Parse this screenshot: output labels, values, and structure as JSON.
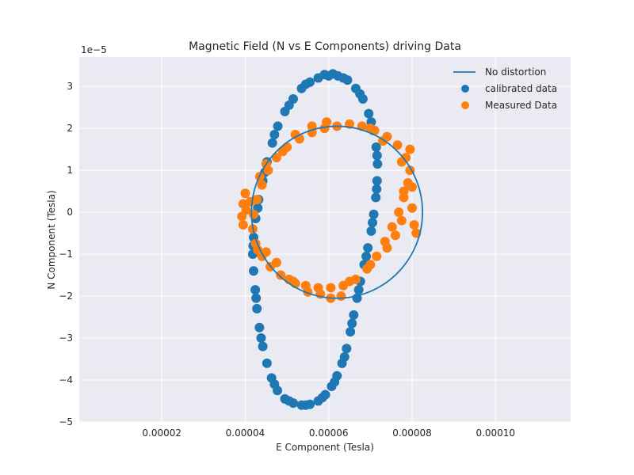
{
  "chart_data": {
    "type": "scatter",
    "title": "Magnetic Field (N vs E Components) driving Data",
    "xlabel": "E Component (Tesla)",
    "ylabel": "N Component (Tesla)",
    "y_offset_label": "1e−5",
    "xlim": [
      2e-07,
      1.18e-05
    ],
    "ylim": [
      -5,
      3.7
    ],
    "y_unit_multiplier": 1e-05,
    "xticks": [
      {
        "value": 2e-05,
        "label": "0.00002"
      },
      {
        "value": 4e-05,
        "label": "0.00004"
      },
      {
        "value": 6e-05,
        "label": "0.00006"
      },
      {
        "value": 8e-05,
        "label": "0.00008"
      },
      {
        "value": 0.0001,
        "label": "0.00010"
      }
    ],
    "yticks": [
      {
        "value": 3,
        "label": "3"
      },
      {
        "value": 2,
        "label": "2"
      },
      {
        "value": 1,
        "label": "1"
      },
      {
        "value": 0,
        "label": "0"
      },
      {
        "value": -1,
        "label": "−1"
      },
      {
        "value": -2,
        "label": "−2"
      },
      {
        "value": -3,
        "label": "−3"
      },
      {
        "value": -4,
        "label": "−4"
      },
      {
        "value": -5,
        "label": "−5"
      }
    ],
    "grid": true,
    "legend_placement": "top-right",
    "background": "#eaeaf2",
    "series": [
      {
        "name": "No distortion",
        "kind": "line",
        "color": "#1f77b4",
        "center": [
          6.2e-05,
          0.0
        ],
        "radius_x": 2.05e-05,
        "radius_y": 2.05
      },
      {
        "name": "calibrated data",
        "kind": "scatter",
        "color": "#1f77b4",
        "points": [
          [
            6e-05,
            3.25
          ],
          [
            5.75e-05,
            3.2
          ],
          [
            5.55e-05,
            3.1
          ],
          [
            5.35e-05,
            2.95
          ],
          [
            5.15e-05,
            2.7
          ],
          [
            4.95e-05,
            2.4
          ],
          [
            4.78e-05,
            2.05
          ],
          [
            4.65e-05,
            1.65
          ],
          [
            4.52e-05,
            1.2
          ],
          [
            4.42e-05,
            0.75
          ],
          [
            4.32e-05,
            0.3
          ],
          [
            4.25e-05,
            -0.15
          ],
          [
            4.2e-05,
            -0.6
          ],
          [
            4.18e-05,
            -1.0
          ],
          [
            4.2e-05,
            -1.4
          ],
          [
            4.24e-05,
            -1.85
          ],
          [
            4.28e-05,
            -2.3
          ],
          [
            4.34e-05,
            -2.75
          ],
          [
            4.42e-05,
            -3.2
          ],
          [
            4.52e-05,
            -3.6
          ],
          [
            4.63e-05,
            -3.95
          ],
          [
            4.77e-05,
            -4.25
          ],
          [
            4.95e-05,
            -4.45
          ],
          [
            5.15e-05,
            -4.55
          ],
          [
            5.35e-05,
            -4.6
          ],
          [
            5.55e-05,
            -4.58
          ],
          [
            5.75e-05,
            -4.5
          ],
          [
            5.92e-05,
            -4.35
          ],
          [
            6.07e-05,
            -4.15
          ],
          [
            6.2e-05,
            -3.9
          ],
          [
            6.32e-05,
            -3.6
          ],
          [
            6.43e-05,
            -3.25
          ],
          [
            6.52e-05,
            -2.85
          ],
          [
            6.6e-05,
            -2.45
          ],
          [
            6.68e-05,
            -2.05
          ],
          [
            6.76e-05,
            -1.65
          ],
          [
            6.85e-05,
            -1.25
          ],
          [
            6.94e-05,
            -0.85
          ],
          [
            7.02e-05,
            -0.45
          ],
          [
            7.08e-05,
            -0.05
          ],
          [
            7.13e-05,
            0.35
          ],
          [
            7.16e-05,
            0.75
          ],
          [
            7.17e-05,
            1.15
          ],
          [
            7.14e-05,
            1.55
          ],
          [
            7.07e-05,
            1.95
          ],
          [
            6.96e-05,
            2.35
          ],
          [
            6.82e-05,
            2.7
          ],
          [
            6.65e-05,
            2.95
          ],
          [
            6.45e-05,
            3.15
          ],
          [
            6.22e-05,
            3.25
          ],
          [
            6.1e-05,
            3.3
          ],
          [
            5.9e-05,
            3.28
          ],
          [
            5.45e-05,
            3.05
          ],
          [
            5.05e-05,
            2.55
          ],
          [
            4.7e-05,
            1.85
          ],
          [
            4.47e-05,
            0.95
          ],
          [
            4.3e-05,
            0.1
          ],
          [
            4.19e-05,
            -0.8
          ],
          [
            4.26e-05,
            -2.05
          ],
          [
            4.38e-05,
            -3.0
          ],
          [
            4.7e-05,
            -4.1
          ],
          [
            5.05e-05,
            -4.5
          ],
          [
            5.45e-05,
            -4.6
          ],
          [
            5.85e-05,
            -4.42
          ],
          [
            6.14e-05,
            -4.05
          ],
          [
            6.38e-05,
            -3.45
          ],
          [
            6.56e-05,
            -2.65
          ],
          [
            6.72e-05,
            -1.85
          ],
          [
            6.9e-05,
            -1.05
          ],
          [
            7.05e-05,
            -0.25
          ],
          [
            7.15e-05,
            0.55
          ],
          [
            7.16e-05,
            1.35
          ],
          [
            7.02e-05,
            2.15
          ],
          [
            6.75e-05,
            2.82
          ],
          [
            6.35e-05,
            3.2
          ]
        ]
      },
      {
        "name": "Measured Data",
        "kind": "scatter",
        "color": "#ff7f0e",
        "points": [
          [
            6.2e-05,
            2.05
          ],
          [
            5.9e-05,
            2.0
          ],
          [
            5.6e-05,
            1.9
          ],
          [
            5.3e-05,
            1.75
          ],
          [
            5e-05,
            1.55
          ],
          [
            4.75e-05,
            1.3
          ],
          [
            4.55e-05,
            1.0
          ],
          [
            4.4e-05,
            0.65
          ],
          [
            4.28e-05,
            0.3
          ],
          [
            4.2e-05,
            -0.05
          ],
          [
            4.18e-05,
            -0.4
          ],
          [
            4.25e-05,
            -0.75
          ],
          [
            4.4e-05,
            -1.05
          ],
          [
            4.6e-05,
            -1.3
          ],
          [
            4.85e-05,
            -1.5
          ],
          [
            5.15e-05,
            -1.65
          ],
          [
            5.45e-05,
            -1.75
          ],
          [
            5.75e-05,
            -1.8
          ],
          [
            6.05e-05,
            -1.8
          ],
          [
            6.35e-05,
            -1.75
          ],
          [
            6.65e-05,
            -1.6
          ],
          [
            6.92e-05,
            -1.35
          ],
          [
            7.15e-05,
            -1.05
          ],
          [
            7.35e-05,
            -0.7
          ],
          [
            7.52e-05,
            -0.35
          ],
          [
            7.68e-05,
            0.0
          ],
          [
            7.8e-05,
            0.35
          ],
          [
            7.9e-05,
            0.7
          ],
          [
            7.95e-05,
            1.0
          ],
          [
            7.85e-05,
            1.3
          ],
          [
            7.65e-05,
            1.6
          ],
          [
            7.4e-05,
            1.8
          ],
          [
            7.1e-05,
            1.95
          ],
          [
            6.8e-05,
            2.05
          ],
          [
            6.5e-05,
            2.1
          ],
          [
            4e-05,
            0.45
          ],
          [
            3.95e-05,
            0.2
          ],
          [
            3.92e-05,
            -0.1
          ],
          [
            3.95e-05,
            -0.3
          ],
          [
            4.02e-05,
            0.05
          ],
          [
            8e-05,
            0.1
          ],
          [
            8.05e-05,
            -0.3
          ],
          [
            8.1e-05,
            -0.5
          ],
          [
            8e-05,
            0.6
          ],
          [
            7.95e-05,
            1.5
          ],
          [
            6.05e-05,
            -2.05
          ],
          [
            6.3e-05,
            -2.0
          ],
          [
            5.8e-05,
            -1.95
          ],
          [
            5.5e-05,
            -1.9
          ],
          [
            5.2e-05,
            -1.7
          ],
          [
            4.75e-05,
            -1.2
          ],
          [
            4.5e-05,
            -0.95
          ],
          [
            4.35e-05,
            0.85
          ],
          [
            4.5e-05,
            1.15
          ],
          [
            5.2e-05,
            1.85
          ],
          [
            5.6e-05,
            2.05
          ],
          [
            5.95e-05,
            2.15
          ],
          [
            7e-05,
            2.0
          ],
          [
            7.3e-05,
            1.7
          ],
          [
            7.75e-05,
            1.2
          ],
          [
            7.6e-05,
            -0.55
          ],
          [
            7.4e-05,
            -0.85
          ],
          [
            7e-05,
            -1.25
          ],
          [
            6.5e-05,
            -1.65
          ],
          [
            4.9e-05,
            1.45
          ],
          [
            5.05e-05,
            -1.6
          ],
          [
            7.8e-05,
            0.5
          ],
          [
            7.75e-05,
            -0.2
          ],
          [
            4.12e-05,
            0.25
          ],
          [
            4.3e-05,
            -0.9
          ]
        ]
      }
    ]
  }
}
